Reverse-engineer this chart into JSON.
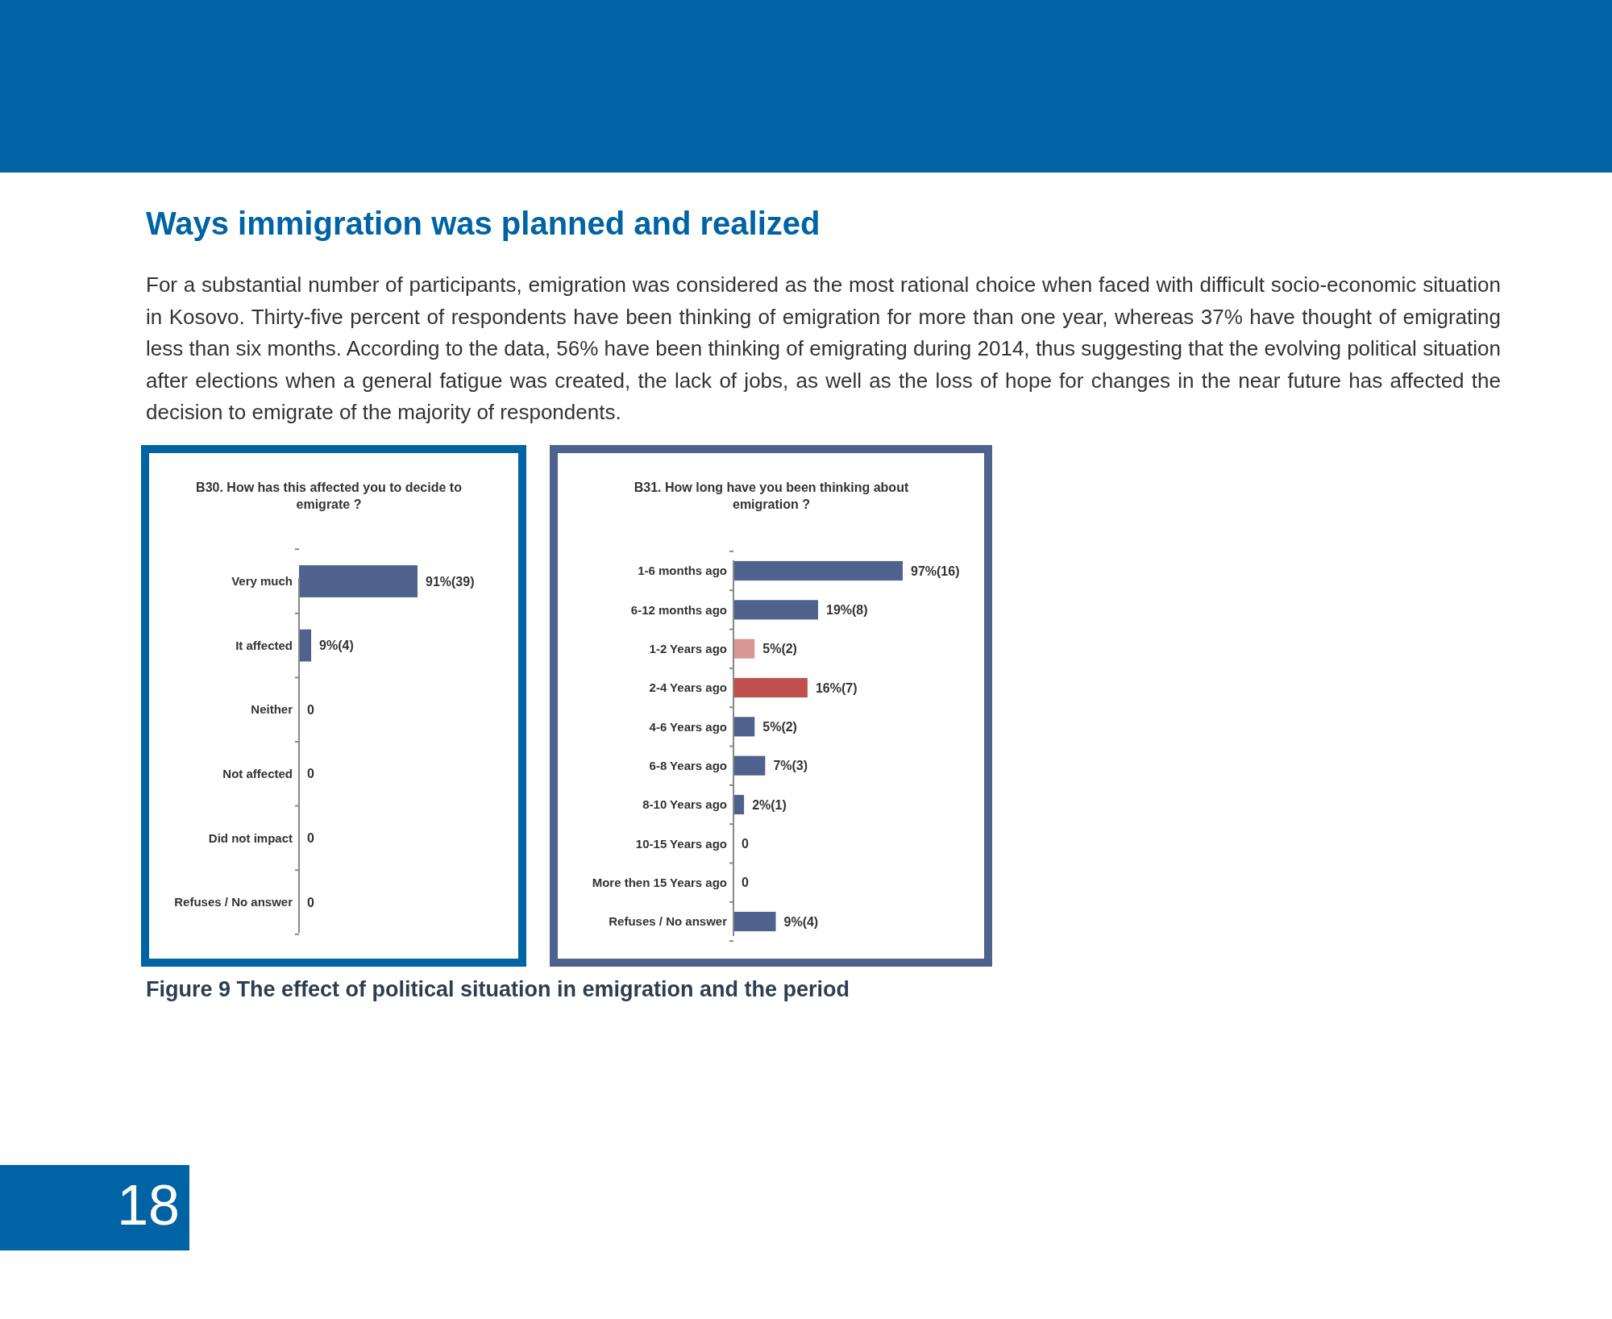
{
  "chart_data": [
    {
      "type": "other",
      "title": "Ways immigration was planned and realized",
      "annotations": [
        "For a substantial number of participants, emigration was considered as the most rational choice when faced with difficult socio-economic situation in Kosovo. Thirty-five percent of respondents have been thinking of emigration for more than one year, whereas 37% have thought of emigrating less than six months. According to the data, 56% have been thinking of emigrating during 2014, thus suggesting that the evolving political situation after elections when a general fatigue was created, the lack of jobs, as well as the loss of hope for changes in the near future has affected the decision to emigrate of the majority of respondents.",
        "Figure 9 The effect of political situation in emigration and the period",
        "18"
      ]
    },
    {
      "type": "bar",
      "orientation": "horizontal",
      "title": "B30. How has this affected you to decide to emigrate ?",
      "categories": [
        "Very much",
        "It affected",
        "Neither",
        "Not affected",
        "Did not impact",
        "Refuses / No answer"
      ],
      "values": [
        39,
        4,
        0,
        0,
        0,
        0
      ],
      "color": "#4f628e",
      "value_labels": [
        "91%(39)",
        "9%(4)",
        "0",
        "0",
        "0",
        "0"
      ]
    },
    {
      "type": "bar",
      "orientation": "horizontal",
      "title": "B31. How long have you been thinking about emigration ?",
      "categories": [
        "1-6 months ago",
        "6-12 months ago",
        "1-2 Years ago",
        "2-4 Years ago",
        "4-6 Years ago",
        "6-8 Years ago",
        "8-10 Years ago",
        "10-15 Years ago",
        "More then 15 Years ago",
        "Refuses / No answer"
      ],
      "values": [
        16,
        8,
        2,
        7,
        2,
        3,
        1,
        0,
        0,
        4
      ],
      "colors": [
        "#4f628e",
        "#4f628e",
        "#d99694",
        "#c0504d",
        "#4f628e",
        "#4f628e",
        "#4f628e",
        "#4f628e",
        "#4f628e",
        "#4f628e"
      ],
      "value_labels": [
        "97%(16)",
        "19%(8)",
        "5%(2)",
        "16%(7)",
        "5%(2)",
        "7%(3)",
        "2%(1)",
        "0",
        "0",
        "9%(4)"
      ]
    }
  ]
}
